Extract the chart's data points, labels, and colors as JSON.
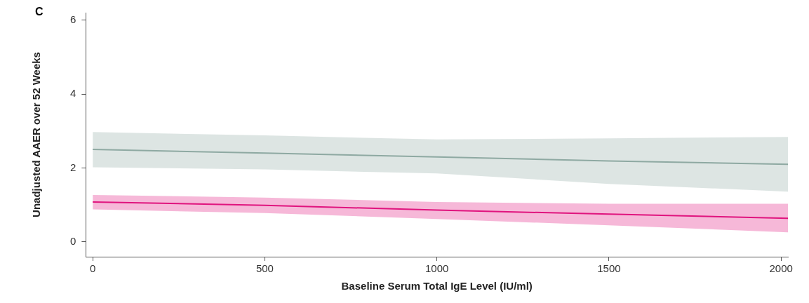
{
  "chart_data": {
    "type": "line",
    "xlabel": "Baseline Serum Total IgE Level (IU/ml)",
    "ylabel": "Unadjusted AAER over 52 Weeks",
    "annotations": [
      "C"
    ],
    "xlim": [
      -20,
      2020
    ],
    "xticks": [
      0,
      500,
      1000,
      1500,
      2000
    ],
    "ylim": [
      -0.4,
      6.2
    ],
    "yticks": [
      0,
      2,
      4,
      6
    ],
    "grid": false,
    "legend": false,
    "marker": "none",
    "line_style": "solid",
    "series": [
      {
        "color": "#8faaa3",
        "x": [
          0,
          500,
          1000,
          1500,
          2020
        ],
        "values": [
          2.5,
          2.4,
          2.3,
          2.19,
          2.1
        ],
        "lower": [
          2.02,
          1.96,
          1.85,
          1.57,
          1.36
        ],
        "upper": [
          2.97,
          2.88,
          2.77,
          2.8,
          2.84
        ]
      },
      {
        "color": "#e0157f",
        "x": [
          0,
          500,
          1000,
          1500,
          2020
        ],
        "values": [
          1.08,
          0.99,
          0.86,
          0.75,
          0.64
        ],
        "lower": [
          0.88,
          0.78,
          0.62,
          0.45,
          0.26
        ],
        "upper": [
          1.27,
          1.2,
          1.08,
          1.03,
          1.03
        ]
      }
    ]
  }
}
